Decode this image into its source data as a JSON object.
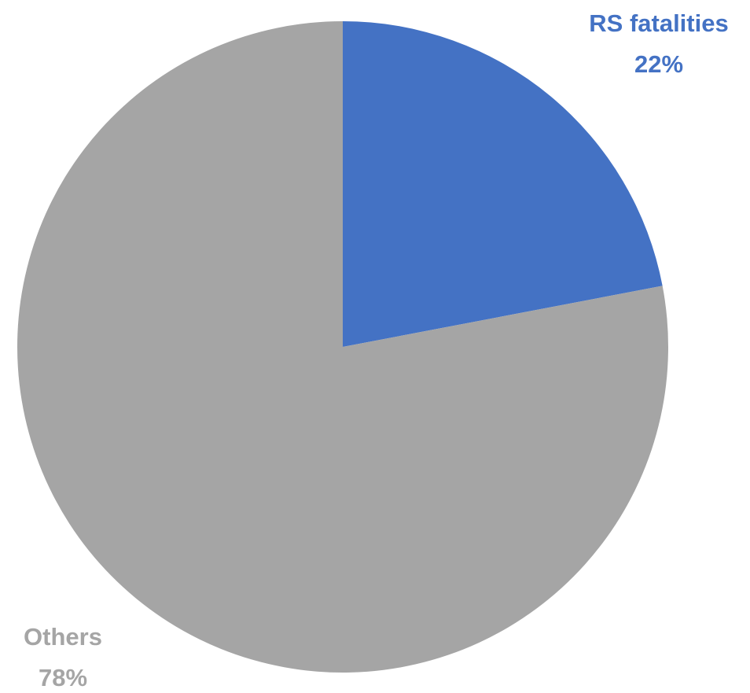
{
  "chart_data": {
    "type": "pie",
    "title": "",
    "slices": [
      {
        "label": "RS fatalities",
        "value": 22,
        "value_label": "22%",
        "color": "#4472C4"
      },
      {
        "label": "Others",
        "value": 78,
        "value_label": "78%",
        "color": "#A5A5A5"
      }
    ],
    "start_angle": "12 o'clock",
    "direction": "clockwise",
    "legend": "none"
  }
}
